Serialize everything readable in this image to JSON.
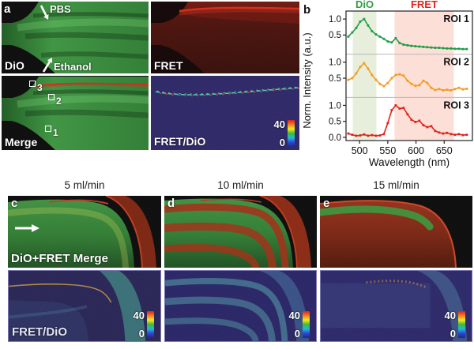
{
  "panel_a": {
    "letter": "a",
    "quadrants": {
      "dio": {
        "label": "DiO",
        "pbs_label": "PBS",
        "ethanol_label": "Ethanol"
      },
      "fret": {
        "label": "FRET"
      },
      "merge": {
        "label": "Merge",
        "roi_markers": [
          "3",
          "2",
          "1"
        ]
      },
      "ratio": {
        "label": "FRET/DiO",
        "colorbar_max": "40",
        "colorbar_min": "0"
      }
    }
  },
  "panel_b": {
    "letter": "b"
  },
  "chart_data": {
    "type": "line",
    "title": "",
    "xlabel": "Wavelength (nm)",
    "ylabel": "Norm. Intensity (a.u.)",
    "xlim": [
      476,
      700
    ],
    "ylim": [
      -0.1,
      1.25
    ],
    "xticks": [
      500,
      550,
      600,
      650
    ],
    "yticks": [
      1.0,
      0.5
    ],
    "yticks_last": [
      1.0,
      0.5,
      0.0
    ],
    "grid": false,
    "bands": [
      {
        "label": "DiO",
        "x_range": [
          488,
          530
        ],
        "fill": "#e7efdc",
        "label_color": "#2f9e41"
      },
      {
        "label": "FRET",
        "x_range": [
          562,
          667
        ],
        "fill": "#fcdfd7",
        "label_color": "#e2231a"
      }
    ],
    "x": [
      480,
      487,
      494,
      501,
      508,
      515,
      522,
      529,
      536,
      543,
      550,
      557,
      564,
      571,
      578,
      585,
      592,
      599,
      606,
      613,
      620,
      627,
      634,
      641,
      648,
      655,
      662,
      669,
      676,
      683,
      690
    ],
    "series": [
      {
        "name": "ROI 1",
        "color": "#1e9e46",
        "values": [
          0.45,
          0.58,
          0.72,
          0.92,
          1.0,
          0.8,
          0.62,
          0.52,
          0.45,
          0.38,
          0.3,
          0.27,
          0.4,
          0.25,
          0.2,
          0.18,
          0.16,
          0.15,
          0.14,
          0.13,
          0.12,
          0.11,
          0.1,
          0.1,
          0.09,
          0.08,
          0.08,
          0.07,
          0.07,
          0.06,
          0.06
        ]
      },
      {
        "name": "ROI 2",
        "color": "#f59a23",
        "values": [
          0.45,
          0.5,
          0.65,
          0.85,
          0.97,
          0.8,
          0.6,
          0.45,
          0.32,
          0.25,
          0.35,
          0.5,
          0.6,
          0.62,
          0.58,
          0.42,
          0.32,
          0.26,
          0.28,
          0.42,
          0.35,
          0.2,
          0.13,
          0.16,
          0.12,
          0.14,
          0.12,
          0.16,
          0.2,
          0.15,
          0.17
        ]
      },
      {
        "name": "ROI 3",
        "color": "#e2231a",
        "values": [
          0.12,
          0.08,
          0.05,
          0.06,
          0.09,
          0.05,
          0.07,
          0.05,
          0.06,
          0.1,
          0.45,
          0.85,
          1.0,
          0.9,
          0.92,
          0.72,
          0.55,
          0.48,
          0.52,
          0.38,
          0.32,
          0.35,
          0.2,
          0.15,
          0.12,
          0.14,
          0.1,
          0.08,
          0.1,
          0.07,
          0.08
        ]
      }
    ],
    "legend_position": "roi labels top-right inside each stacked subplot"
  },
  "flow_panels": {
    "columns": [
      {
        "letter": "c",
        "title": "5 ml/min"
      },
      {
        "letter": "d",
        "title": "10 ml/min"
      },
      {
        "letter": "e",
        "title": "15 ml/min"
      }
    ],
    "merge_label": "DiO+FRET Merge",
    "ratio_label": "FRET/DiO",
    "colorbar_max": "40",
    "colorbar_min": "0"
  },
  "colors": {
    "dio_green": "#3c9440",
    "fret_red": "#d52a18",
    "ratio_background": "#2b2566",
    "band_green_fill": "#e7efdc",
    "band_red_fill": "#fcdfd7",
    "colorbar_stops": [
      "#e21d1d",
      "#f07f1e",
      "#f2e723",
      "#3dbb35",
      "#25b6d8",
      "#2b46d8",
      "#232a7c"
    ]
  }
}
